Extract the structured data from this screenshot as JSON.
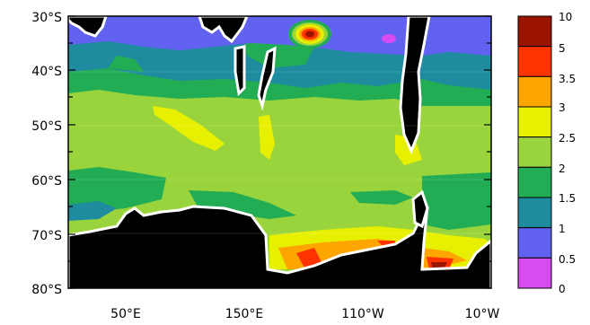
{
  "colors": {
    "land": "#000000",
    "coast": "#ffffff",
    "frame": "#000000"
  },
  "y_axis": {
    "labels": [
      "30°S",
      "40°S",
      "50°S",
      "60°S",
      "70°S",
      "80°S"
    ]
  },
  "x_axis": {
    "labels": [
      "50°E",
      "150°E",
      "110°W",
      "10°W"
    ]
  },
  "colorbar": {
    "labels": [
      "10",
      "5",
      "3.5",
      "3",
      "2.5",
      "2",
      "1.5",
      "1",
      "0.5",
      "0"
    ],
    "colors": [
      "#9b1400",
      "#ff3300",
      "#ffa500",
      "#e6f000",
      "#9ad43c",
      "#22ad55",
      "#1e8c9e",
      "#6262f0",
      "#d84bf0"
    ]
  },
  "fields": {
    "background_color": "#9ad43c",
    "north_band_color": "#6262f0",
    "teal_band_color": "#1e8c9e",
    "green_band_color": "#22ad55",
    "yellow_color": "#e6f000",
    "orange_color": "#ffa500",
    "red_color": "#ff3300",
    "darkred_color": "#9b1400",
    "magenta_color": "#d84bf0"
  }
}
